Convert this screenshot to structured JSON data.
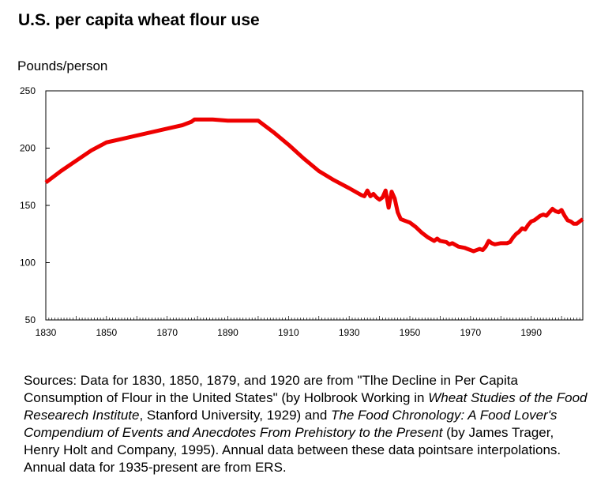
{
  "chart_data": {
    "type": "line",
    "title": "U.S. per capita wheat flour use",
    "ylabel": "Pounds/person",
    "xlabel": "",
    "xlim": [
      1830,
      2007
    ],
    "ylim": [
      50,
      250
    ],
    "x_ticks": [
      1830,
      1850,
      1870,
      1890,
      1910,
      1930,
      1950,
      1970,
      1990
    ],
    "y_ticks": [
      50,
      100,
      150,
      200,
      250
    ],
    "grid": false,
    "legend": "none",
    "series": [
      {
        "color": "#ee0000",
        "points": [
          [
            1830,
            170
          ],
          [
            1835,
            180
          ],
          [
            1840,
            189
          ],
          [
            1845,
            198
          ],
          [
            1850,
            205
          ],
          [
            1855,
            208
          ],
          [
            1860,
            211
          ],
          [
            1865,
            214
          ],
          [
            1870,
            217
          ],
          [
            1875,
            220
          ],
          [
            1878,
            223
          ],
          [
            1879,
            225
          ],
          [
            1880,
            225
          ],
          [
            1885,
            225
          ],
          [
            1890,
            224
          ],
          [
            1895,
            224
          ],
          [
            1900,
            224
          ],
          [
            1905,
            214
          ],
          [
            1910,
            203
          ],
          [
            1915,
            191
          ],
          [
            1920,
            180
          ],
          [
            1925,
            172
          ],
          [
            1930,
            165
          ],
          [
            1934,
            159
          ],
          [
            1935,
            158
          ],
          [
            1936,
            163
          ],
          [
            1937,
            158
          ],
          [
            1938,
            160
          ],
          [
            1939,
            157
          ],
          [
            1940,
            155
          ],
          [
            1941,
            157
          ],
          [
            1942,
            163
          ],
          [
            1943,
            148
          ],
          [
            1944,
            162
          ],
          [
            1945,
            156
          ],
          [
            1946,
            144
          ],
          [
            1947,
            138
          ],
          [
            1948,
            137
          ],
          [
            1949,
            136
          ],
          [
            1950,
            135
          ],
          [
            1952,
            131
          ],
          [
            1954,
            126
          ],
          [
            1956,
            122
          ],
          [
            1958,
            119
          ],
          [
            1959,
            121
          ],
          [
            1960,
            119
          ],
          [
            1962,
            118
          ],
          [
            1963,
            116
          ],
          [
            1964,
            117
          ],
          [
            1966,
            114
          ],
          [
            1968,
            113
          ],
          [
            1969,
            112
          ],
          [
            1970,
            111
          ],
          [
            1971,
            110
          ],
          [
            1972,
            111
          ],
          [
            1973,
            112
          ],
          [
            1974,
            111
          ],
          [
            1975,
            114
          ],
          [
            1976,
            119
          ],
          [
            1977,
            117
          ],
          [
            1978,
            116
          ],
          [
            1980,
            117
          ],
          [
            1982,
            117
          ],
          [
            1983,
            118
          ],
          [
            1984,
            122
          ],
          [
            1985,
            125
          ],
          [
            1986,
            127
          ],
          [
            1987,
            130
          ],
          [
            1988,
            129
          ],
          [
            1989,
            133
          ],
          [
            1990,
            136
          ],
          [
            1991,
            137
          ],
          [
            1992,
            139
          ],
          [
            1993,
            141
          ],
          [
            1994,
            142
          ],
          [
            1995,
            141
          ],
          [
            1996,
            144
          ],
          [
            1997,
            147
          ],
          [
            1998,
            145
          ],
          [
            1999,
            144
          ],
          [
            2000,
            146
          ],
          [
            2001,
            141
          ],
          [
            2002,
            137
          ],
          [
            2003,
            136
          ],
          [
            2004,
            134
          ],
          [
            2005,
            134
          ],
          [
            2006,
            136
          ],
          [
            2007,
            138
          ]
        ]
      }
    ]
  },
  "sources": {
    "prefix": "Sources: Data for 1830, 1850, 1879, and 1920 are from \"Tlhe Decline in Per Capita Consumption of Flour in the United States\" (by Holbrook Working in ",
    "journal": "Wheat Studies of the Food Researech Institute",
    "middle": ", Stanford University, 1929) and ",
    "book": "The Food Chronology: A Food Lover's Compendium of Events and Anecdotes From Prehistory to the Present",
    "suffix": " (by James Trager, Henry Holt and Company, 1995). Annual data between these data pointsare interpolations. Annual data for 1935-present are from ERS."
  }
}
